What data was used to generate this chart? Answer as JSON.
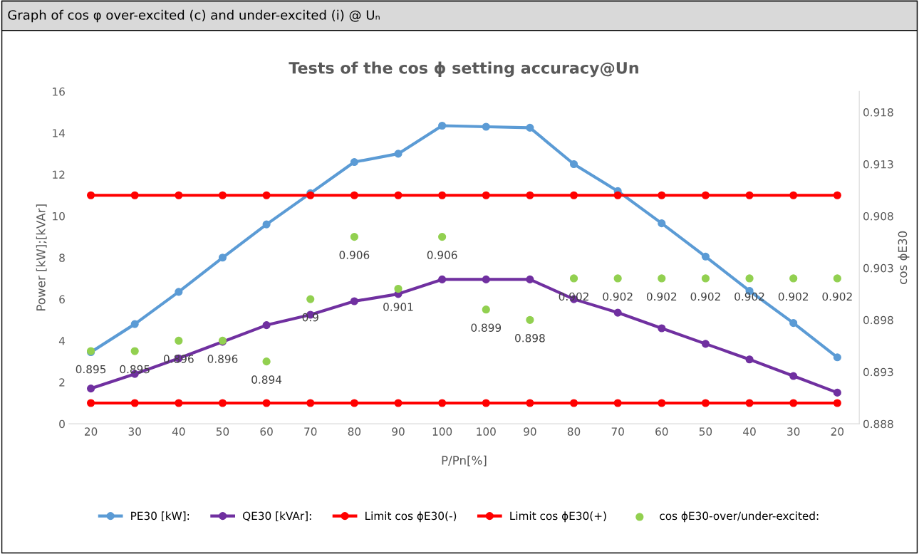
{
  "chart_data": {
    "type": "line",
    "title": "Tests of the cos ϕ setting accuracy@Un",
    "subtitle": "Graph of cos φ over-excited (c) and under-excited (i) @ Uₙ",
    "xlabel": "P/Pn[%]",
    "ylabel": "Power [kW];[kVAr]",
    "y2label": "cos ϕE30",
    "categories": [
      "20",
      "30",
      "40",
      "50",
      "60",
      "70",
      "80",
      "90",
      "100",
      "100",
      "90",
      "80",
      "70",
      "60",
      "50",
      "40",
      "30",
      "20"
    ],
    "series": [
      {
        "name": "PE30 [kW]:",
        "color": "#5b9bd5",
        "values": [
          3.45,
          4.8,
          6.35,
          8.0,
          9.6,
          11.1,
          12.6,
          13.0,
          14.35,
          14.3,
          14.25,
          12.5,
          11.2,
          9.65,
          8.05,
          6.4,
          4.85,
          3.2
        ]
      },
      {
        "name": "QE30 [kVAr]:",
        "color": "#7030a0",
        "values": [
          1.7,
          2.4,
          3.15,
          3.95,
          4.75,
          5.25,
          5.9,
          6.25,
          6.95,
          6.95,
          6.95,
          6.0,
          5.35,
          4.6,
          3.85,
          3.1,
          2.3,
          1.5
        ]
      },
      {
        "name": "Limit cos ϕE30(-)",
        "axis": "y2",
        "color": "#ff0000",
        "values": [
          0.89,
          0.89,
          0.89,
          0.89,
          0.89,
          0.89,
          0.89,
          0.89,
          0.89,
          0.89,
          0.89,
          0.89,
          0.89,
          0.89,
          0.89,
          0.89,
          0.89,
          0.89
        ]
      },
      {
        "name": "Limit cos ϕE30(+)",
        "axis": "y2",
        "color": "#ff0000",
        "values": [
          0.91,
          0.91,
          0.91,
          0.91,
          0.91,
          0.91,
          0.91,
          0.91,
          0.91,
          0.91,
          0.91,
          0.91,
          0.91,
          0.91,
          0.91,
          0.91,
          0.91,
          0.91
        ]
      },
      {
        "name": "cos ϕE30-over/under-excited:",
        "type": "scatter",
        "axis": "y2",
        "color": "#92d050",
        "values": [
          0.895,
          0.895,
          0.896,
          0.896,
          0.894,
          0.9,
          0.906,
          0.901,
          0.906,
          0.899,
          0.898,
          0.902,
          0.902,
          0.902,
          0.902,
          0.902,
          0.902,
          0.902
        ],
        "value_labels": [
          "0.895",
          "0.895",
          "0.896",
          "0.896",
          "0.894",
          "0.9",
          "0.906",
          "0.901",
          "0.906",
          "0.899",
          "0.898",
          "0.902",
          "0.902",
          "0.902",
          "0.902",
          "0.902",
          "0.902",
          "0.902"
        ]
      }
    ],
    "ylim": [
      0,
      16
    ],
    "yticks": [
      0,
      2,
      4,
      6,
      8,
      10,
      12,
      14,
      16
    ],
    "y2lim": [
      0.888,
      0.92
    ],
    "y2ticks": [
      {
        "value": 0.888,
        "label": "0.888"
      },
      {
        "value": 0.893,
        "label": "0.893"
      },
      {
        "value": 0.898,
        "label": "0.898"
      },
      {
        "value": 0.903,
        "label": "0.903"
      },
      {
        "value": 0.908,
        "label": "0.908"
      },
      {
        "value": 0.913,
        "label": "0.913"
      },
      {
        "value": 0.918,
        "label": "0.918"
      }
    ],
    "marker": "circle",
    "grid": false,
    "legend": "bottom"
  }
}
